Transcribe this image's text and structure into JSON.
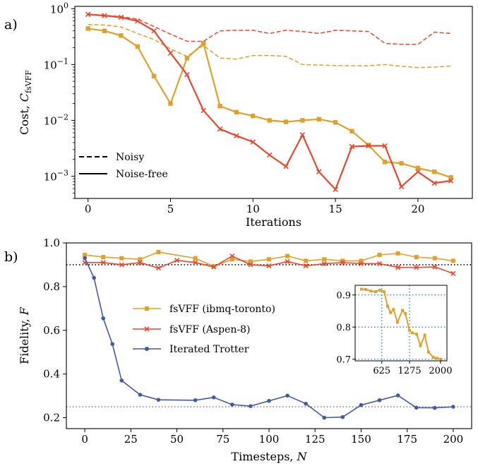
{
  "panel_labels": {
    "a": "a)",
    "b": "b)"
  },
  "colors": {
    "ibmq": "#e0a02c",
    "aspen": "#e8472c",
    "trotter": "#4359a8",
    "ref_dark": "#000000",
    "ref_grey": "#888888",
    "inset_grid": "#2a7ab8"
  },
  "chart_data": [
    {
      "type": "line",
      "panel": "a)",
      "xlabel": "Iterations",
      "ylabel": "Cost, C_fsVFF",
      "ylabel_main": "Cost, ",
      "ylabel_sub": "fsVFF",
      "yscale": "log",
      "xlim": [
        -0.8,
        23.3
      ],
      "ylim": [
        0.0004,
        1.1
      ],
      "xticks": [
        0,
        5,
        10,
        15,
        20
      ],
      "yticks": [
        {
          "value": 1,
          "base": "10",
          "exp": "0"
        },
        {
          "value": 0.1,
          "base": "10",
          "exp": "−1"
        },
        {
          "value": 0.01,
          "base": "10",
          "exp": "−2"
        },
        {
          "value": 0.001,
          "base": "10",
          "exp": "−3"
        }
      ],
      "legend": [
        {
          "label": "Noisy",
          "style": "dashed"
        },
        {
          "label": "Noise-free",
          "style": "solid"
        }
      ],
      "series": [
        {
          "color": "#e0a02c",
          "style": "dashed",
          "x": [
            0,
            1,
            2,
            3,
            4,
            5,
            6,
            7,
            8,
            9,
            10,
            11,
            12,
            13,
            14,
            15,
            16,
            17,
            18,
            19,
            20,
            21,
            22
          ],
          "values": [
            0.52,
            0.51,
            0.47,
            0.36,
            0.28,
            0.19,
            0.14,
            0.22,
            0.13,
            0.125,
            0.145,
            0.145,
            0.14,
            0.1,
            0.098,
            0.096,
            0.095,
            0.095,
            0.1,
            0.093,
            0.088,
            0.09,
            0.094
          ]
        },
        {
          "color": "#e8472c",
          "style": "dashed",
          "x": [
            0,
            1,
            2,
            3,
            4,
            5,
            6,
            7,
            8,
            9,
            10,
            11,
            12,
            13,
            14,
            15,
            16,
            17,
            18,
            19,
            20,
            21,
            22
          ],
          "values": [
            0.8,
            0.76,
            0.72,
            0.65,
            0.48,
            0.35,
            0.26,
            0.26,
            0.4,
            0.41,
            0.41,
            0.36,
            0.41,
            0.39,
            0.36,
            0.41,
            0.4,
            0.39,
            0.24,
            0.23,
            0.23,
            0.38,
            0.36
          ]
        },
        {
          "color": "#e0a02c",
          "style": "solid",
          "marker": "square",
          "x": [
            0,
            1,
            2,
            3,
            4,
            5,
            6,
            7,
            8,
            9,
            10,
            11,
            12,
            13,
            14,
            15,
            16,
            17,
            18,
            19,
            20,
            21,
            22
          ],
          "values": [
            0.44,
            0.4,
            0.33,
            0.21,
            0.062,
            0.02,
            0.13,
            0.24,
            0.018,
            0.014,
            0.012,
            0.01,
            0.0094,
            0.01,
            0.0105,
            0.0092,
            0.0064,
            0.0036,
            0.0018,
            0.0017,
            0.0014,
            0.0012,
            0.00095
          ]
        },
        {
          "color": "#e8472c",
          "style": "solid",
          "marker": "x",
          "x": [
            0,
            1,
            2,
            3,
            4,
            5,
            6,
            7,
            8,
            9,
            10,
            11,
            12,
            13,
            14,
            15,
            16,
            17,
            18,
            19,
            20,
            21,
            22
          ],
          "values": [
            0.79,
            0.75,
            0.7,
            0.6,
            0.4,
            0.16,
            0.066,
            0.015,
            0.007,
            0.0053,
            0.0041,
            0.0024,
            0.0015,
            0.0055,
            0.0012,
            0.00058,
            0.0034,
            0.0035,
            0.0035,
            0.00065,
            0.0012,
            0.00075,
            0.00083
          ]
        }
      ]
    },
    {
      "type": "line",
      "panel": "b)",
      "xlabel": "Timesteps, N",
      "xlabel_main": "Timesteps, ",
      "xlabel_var": "N",
      "ylabel": "Fidelity, F",
      "ylabel_main": "Fidelity, ",
      "ylabel_var": "F",
      "xlim": [
        -10,
        210
      ],
      "ylim": [
        0.15,
        1.0
      ],
      "xticks": [
        0,
        25,
        50,
        75,
        100,
        125,
        150,
        175,
        200
      ],
      "yticks": [
        0.2,
        0.4,
        0.6,
        0.8,
        1.0
      ],
      "ytick_labels": [
        "0.2",
        "0.4",
        "0.6",
        "0.8",
        "1.0"
      ],
      "hlines": [
        {
          "y": 0.9,
          "style": "dotted",
          "color": "#000000"
        },
        {
          "y": 0.25,
          "style": "dotted",
          "color": "#888888"
        }
      ],
      "legend_position": "center-right",
      "series": [
        {
          "name": "fsVFF (ibmq-toronto)",
          "color": "#e0a02c",
          "marker": "square",
          "x": [
            0,
            10,
            20,
            30,
            40,
            60,
            70,
            80,
            90,
            100,
            110,
            120,
            130,
            140,
            150,
            160,
            170,
            180,
            190,
            200
          ],
          "values": [
            0.945,
            0.935,
            0.93,
            0.925,
            0.958,
            0.93,
            0.892,
            0.925,
            0.915,
            0.925,
            0.94,
            0.918,
            0.925,
            0.918,
            0.918,
            0.945,
            0.952,
            0.935,
            0.93,
            0.918
          ]
        },
        {
          "name": "fsVFF (Aspen-8)",
          "color": "#e8472c",
          "marker": "x",
          "x": [
            0,
            10,
            20,
            30,
            40,
            50,
            60,
            70,
            80,
            90,
            100,
            110,
            120,
            130,
            140,
            150,
            160,
            170,
            180,
            190,
            200
          ],
          "values": [
            0.91,
            0.91,
            0.9,
            0.91,
            0.885,
            0.92,
            0.91,
            0.89,
            0.94,
            0.9,
            0.895,
            0.915,
            0.895,
            0.905,
            0.91,
            0.905,
            0.905,
            0.888,
            0.888,
            0.89,
            0.86
          ]
        },
        {
          "name": "Iterated Trotter",
          "color": "#4359a8",
          "marker": "circle",
          "x": [
            0,
            5,
            10,
            15,
            20,
            30,
            40,
            60,
            70,
            80,
            90,
            100,
            110,
            120,
            130,
            140,
            150,
            160,
            170,
            180,
            190,
            200
          ],
          "values": [
            0.93,
            0.84,
            0.655,
            0.537,
            0.37,
            0.305,
            0.282,
            0.28,
            0.293,
            0.26,
            0.253,
            0.277,
            0.301,
            0.264,
            0.2,
            0.203,
            0.258,
            0.28,
            0.302,
            0.246,
            0.245,
            0.25
          ]
        }
      ],
      "inset": {
        "xlim": [
          0,
          2150
        ],
        "ylim": [
          0.695,
          0.93
        ],
        "xticks": [
          625,
          1275,
          2000
        ],
        "yticks": [
          0.7,
          0.8,
          0.9
        ],
        "ytick_labels": [
          "0.7",
          "0.8",
          "0.9"
        ],
        "grid_x": [
          625,
          1275
        ],
        "grid_y": [
          0.7,
          0.8,
          0.9
        ],
        "series": {
          "color": "#e0a02c",
          "marker": "square",
          "x": [
            150,
            250,
            370,
            480,
            575,
            680,
            760,
            830,
            900,
            990,
            1110,
            1180,
            1270,
            1340,
            1440,
            1530,
            1630,
            1720,
            1830,
            1920,
            2010
          ],
          "values": [
            0.918,
            0.917,
            0.912,
            0.91,
            0.915,
            0.91,
            0.865,
            0.845,
            0.855,
            0.815,
            0.852,
            0.842,
            0.79,
            0.782,
            0.778,
            0.742,
            0.775,
            0.722,
            0.706,
            0.703,
            0.7
          ]
        }
      }
    }
  ]
}
